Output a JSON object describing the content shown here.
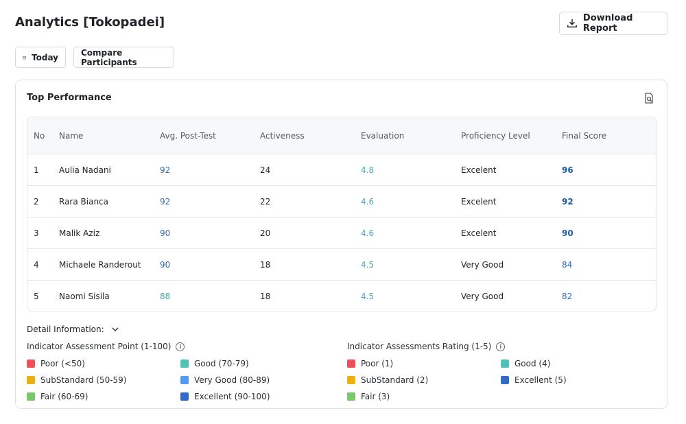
{
  "header": {
    "title": "Analytics [Tokopadei]",
    "download": "Download Report"
  },
  "toolbar": {
    "today": "Today",
    "compare": "Compare Participants"
  },
  "card": {
    "title": "Top Performance"
  },
  "table": {
    "columns": [
      "No",
      "Name",
      "Avg. Post-Test",
      "Activeness",
      "Evaluation",
      "Proficiency Level",
      "Final Score"
    ],
    "rows": [
      [
        1,
        "Aulia Nadani",
        92,
        24,
        4.8,
        "Excelent",
        96
      ],
      [
        2,
        "Rara Bianca",
        92,
        22,
        4.6,
        "Excelent",
        92
      ],
      [
        3,
        "Malik Aziz",
        90,
        20,
        4.6,
        "Excelent",
        90
      ],
      [
        4,
        "Michaele Randerout",
        90,
        18,
        4.5,
        "Very Good",
        84
      ],
      [
        5,
        "Naomi Sisila",
        88,
        18,
        4.5,
        "Very Good",
        82
      ]
    ]
  },
  "detail": {
    "label": "Detail Information:",
    "point": {
      "title": "Indicator Assessment Point (1-100)",
      "items": [
        {
          "label": "Poor (<50)",
          "color": "#ef5058"
        },
        {
          "label": "Good (70-79)",
          "color": "#4fc3b8"
        },
        {
          "label": "SubStandard (50-59)",
          "color": "#ecb10e"
        },
        {
          "label": "Very Good (80-89)",
          "color": "#4f9cf5"
        },
        {
          "label": "Fair (60-69)",
          "color": "#7cc66a"
        },
        {
          "label": "Excellent (90-100)",
          "color": "#2f6cc9"
        }
      ]
    },
    "rating": {
      "title": "Indicator Assessments Rating (1-5)",
      "items": [
        {
          "label": "Poor (1)",
          "color": "#ef5058"
        },
        {
          "label": "Good (4)",
          "color": "#4fc3b8"
        },
        {
          "label": "SubStandard (2)",
          "color": "#ecb10e"
        },
        {
          "label": "Excellent (5)",
          "color": "#2f6cc9"
        },
        {
          "label": "Fair (3)",
          "color": "#7cc66a"
        }
      ]
    }
  }
}
